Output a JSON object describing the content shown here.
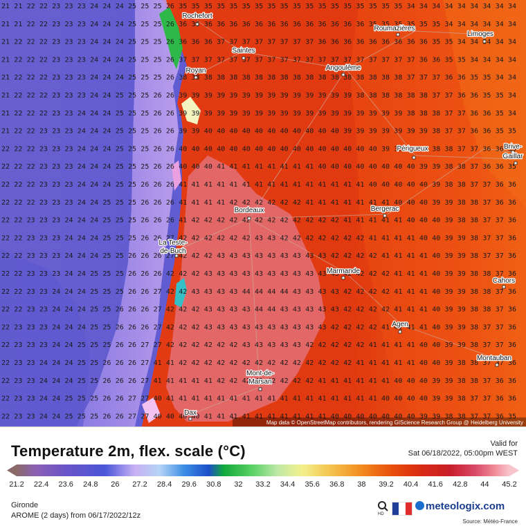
{
  "map": {
    "cities": [
      {
        "name": "Rochefort"
      },
      {
        "name": "Roumazières"
      },
      {
        "name": "Limoges"
      },
      {
        "name": "Saintes"
      },
      {
        "name": "Royan"
      },
      {
        "name": "Angoulême"
      },
      {
        "name": "Périgueux"
      },
      {
        "name": "Brive-"
      },
      {
        "name": "Gaillar"
      },
      {
        "name": "Bordeaux"
      },
      {
        "name": "Bergerac"
      },
      {
        "name": "La Teste-"
      },
      {
        "name": "de-Buch"
      },
      {
        "name": "Marmande"
      },
      {
        "name": "Cahors"
      },
      {
        "name": "Agen"
      },
      {
        "name": "Montauban"
      },
      {
        "name": "Mont-de-"
      },
      {
        "name": "Marsan"
      },
      {
        "name": "Dax"
      }
    ],
    "credit": "Map data © OpenStreetMap contributors, rendering GIScience Research Group @ Heidelberg University"
  },
  "legend": {
    "title": "Temperature 2m, flex. scale (°C)",
    "valid_label": "Valid for",
    "valid_value": "Sat 06/18/2022, 05:00pm WEST",
    "ticks": [
      "21.2",
      "22.4",
      "23.6",
      "24.8",
      "26",
      "27.2",
      "28.4",
      "29.6",
      "30.8",
      "32",
      "33.2",
      "34.4",
      "35.6",
      "36.8",
      "38",
      "39.2",
      "40.4",
      "41.6",
      "42.8",
      "44",
      "45.2"
    ]
  },
  "footer": {
    "region": "Gironde",
    "model": "AROME (2 days) from 06/17/2022/12z",
    "brand": "meteologix.com",
    "source": "Source: Météo-France",
    "hd": "HD"
  },
  "colors": {
    "ocean": "#5c5fd6",
    "hot_land": "#e5350f",
    "hottest": "#e85a5a",
    "flag_blue": "#1f3d99",
    "flag_white": "#ffffff",
    "flag_red": "#e02c2c"
  }
}
